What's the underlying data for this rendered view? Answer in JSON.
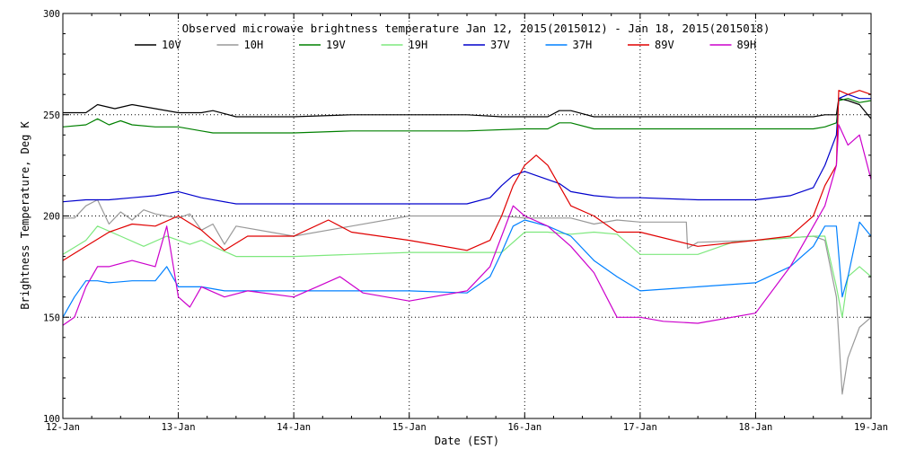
{
  "chart_data": {
    "type": "line",
    "title": "Observed microwave brightness temperature Jan 12, 2015(2015012) - Jan 18, 2015(2015018)",
    "xlabel": "Date (EST)",
    "ylabel": "Brightness Temperature, Deg K",
    "ylim": [
      100,
      300
    ],
    "xlim": [
      0,
      7
    ],
    "x_unit": "days since 12-Jan 00:00",
    "y_ticks": [
      100,
      150,
      200,
      250,
      300
    ],
    "x_tick_labels": [
      "12-Jan",
      "13-Jan",
      "14-Jan",
      "15-Jan",
      "16-Jan",
      "17-Jan",
      "18-Jan",
      "19-Jan"
    ],
    "grid": "dotted",
    "legend_position": "top",
    "series": [
      {
        "name": "10V",
        "color": "#000000",
        "x": [
          0,
          0.2,
          0.3,
          0.45,
          0.6,
          0.8,
          1.0,
          1.2,
          1.3,
          1.5,
          2.0,
          2.5,
          3.0,
          3.5,
          3.8,
          4.0,
          4.2,
          4.3,
          4.4,
          4.6,
          4.9,
          5.0,
          5.5,
          6.0,
          6.5,
          6.6,
          6.7,
          6.72,
          6.8,
          6.9,
          7.0
        ],
        "y": [
          251,
          251,
          255,
          253,
          255,
          253,
          251,
          251,
          252,
          249,
          249,
          250,
          250,
          250,
          249,
          249,
          249,
          252,
          252,
          249,
          249,
          249,
          249,
          249,
          249,
          250,
          250,
          258,
          257,
          255,
          248
        ]
      },
      {
        "name": "10H",
        "color": "#999999",
        "x": [
          0,
          0.1,
          0.2,
          0.3,
          0.4,
          0.5,
          0.6,
          0.7,
          0.8,
          0.9,
          1.0,
          1.1,
          1.2,
          1.3,
          1.4,
          1.5,
          2.0,
          2.5,
          3.0,
          3.5,
          3.8,
          4.0,
          4.2,
          4.4,
          4.6,
          4.8,
          5.0,
          5.4,
          5.41,
          5.5,
          6.0,
          6.5,
          6.6,
          6.7,
          6.75,
          6.8,
          6.9,
          7.0
        ],
        "y": [
          199,
          199,
          205,
          208,
          196,
          202,
          198,
          203,
          201,
          200,
          199,
          201,
          193,
          196,
          186,
          195,
          190,
          195,
          200,
          200,
          200,
          199,
          199,
          199,
          196,
          198,
          197,
          197,
          184,
          187,
          188,
          190,
          188,
          160,
          112,
          130,
          145,
          150
        ]
      },
      {
        "name": "19V",
        "color": "#008000",
        "x": [
          0,
          0.2,
          0.3,
          0.4,
          0.5,
          0.6,
          0.8,
          1.0,
          1.2,
          1.3,
          1.5,
          2.0,
          2.5,
          3.0,
          3.5,
          4.0,
          4.2,
          4.3,
          4.4,
          4.6,
          4.9,
          5.0,
          5.5,
          6.0,
          6.5,
          6.6,
          6.7,
          6.72,
          6.8,
          6.9,
          7.0
        ],
        "y": [
          244,
          245,
          248,
          245,
          247,
          245,
          244,
          244,
          242,
          241,
          241,
          241,
          242,
          242,
          242,
          243,
          243,
          246,
          246,
          243,
          243,
          243,
          243,
          243,
          243,
          244,
          246,
          257,
          258,
          256,
          257
        ]
      },
      {
        "name": "19H",
        "color": "#7ee87e",
        "x": [
          0,
          0.2,
          0.3,
          0.5,
          0.7,
          0.9,
          1.0,
          1.1,
          1.2,
          1.3,
          1.5,
          2.0,
          2.5,
          3.0,
          3.5,
          3.8,
          4.0,
          4.2,
          4.4,
          4.6,
          4.8,
          5.0,
          5.5,
          5.8,
          6.0,
          6.5,
          6.6,
          6.7,
          6.75,
          6.8,
          6.9,
          7.0
        ],
        "y": [
          181,
          188,
          195,
          190,
          185,
          190,
          188,
          186,
          188,
          185,
          180,
          180,
          181,
          182,
          182,
          182,
          192,
          192,
          191,
          192,
          191,
          181,
          181,
          187,
          188,
          190,
          190,
          165,
          150,
          170,
          175,
          170
        ]
      },
      {
        "name": "37V",
        "color": "#0000cc",
        "x": [
          0,
          0.2,
          0.4,
          0.6,
          0.8,
          1.0,
          1.2,
          1.5,
          2.0,
          2.5,
          3.0,
          3.5,
          3.7,
          3.8,
          3.9,
          4.0,
          4.1,
          4.2,
          4.3,
          4.4,
          4.6,
          4.8,
          5.0,
          5.5,
          6.0,
          6.3,
          6.5,
          6.6,
          6.7,
          6.72,
          6.8,
          6.9,
          7.0
        ],
        "y": [
          207,
          208,
          208,
          209,
          210,
          212,
          209,
          206,
          206,
          206,
          206,
          206,
          209,
          215,
          220,
          222,
          220,
          218,
          216,
          212,
          210,
          209,
          209,
          208,
          208,
          210,
          214,
          225,
          240,
          258,
          260,
          258,
          258
        ]
      },
      {
        "name": "37H",
        "color": "#0080ff",
        "x": [
          0,
          0.1,
          0.2,
          0.3,
          0.4,
          0.6,
          0.8,
          0.9,
          1.0,
          1.2,
          1.4,
          1.6,
          2.0,
          2.5,
          3.0,
          3.5,
          3.7,
          3.8,
          3.9,
          4.0,
          4.2,
          4.4,
          4.6,
          4.8,
          5.0,
          5.5,
          6.0,
          6.3,
          6.5,
          6.6,
          6.7,
          6.75,
          6.8,
          6.9,
          7.0
        ],
        "y": [
          150,
          160,
          168,
          168,
          167,
          168,
          168,
          175,
          165,
          165,
          163,
          163,
          163,
          163,
          163,
          162,
          170,
          182,
          195,
          198,
          195,
          190,
          178,
          170,
          163,
          165,
          167,
          175,
          185,
          195,
          195,
          160,
          170,
          197,
          190
        ]
      },
      {
        "name": "89V",
        "color": "#e00000",
        "x": [
          0,
          0.2,
          0.4,
          0.6,
          0.8,
          1.0,
          1.2,
          1.4,
          1.6,
          2.0,
          2.3,
          2.5,
          3.0,
          3.5,
          3.7,
          3.8,
          3.9,
          4.0,
          4.1,
          4.2,
          4.3,
          4.4,
          4.6,
          4.8,
          5.0,
          5.5,
          6.0,
          6.3,
          6.5,
          6.6,
          6.7,
          6.72,
          6.8,
          6.9,
          7.0
        ],
        "y": [
          178,
          185,
          192,
          196,
          195,
          200,
          193,
          183,
          190,
          190,
          198,
          192,
          188,
          183,
          188,
          200,
          215,
          225,
          230,
          225,
          215,
          205,
          200,
          192,
          192,
          185,
          188,
          190,
          200,
          215,
          225,
          262,
          260,
          262,
          260
        ]
      },
      {
        "name": "89H",
        "color": "#cc00cc",
        "x": [
          0,
          0.1,
          0.2,
          0.3,
          0.4,
          0.6,
          0.8,
          0.9,
          1.0,
          1.1,
          1.2,
          1.4,
          1.6,
          2.0,
          2.2,
          2.4,
          2.6,
          3.0,
          3.5,
          3.7,
          3.8,
          3.9,
          4.0,
          4.2,
          4.4,
          4.6,
          4.8,
          5.0,
          5.2,
          5.5,
          6.0,
          6.3,
          6.5,
          6.6,
          6.7,
          6.72,
          6.8,
          6.9,
          7.0
        ],
        "y": [
          146,
          150,
          165,
          175,
          175,
          178,
          175,
          195,
          160,
          155,
          165,
          160,
          163,
          160,
          165,
          170,
          162,
          158,
          163,
          175,
          190,
          205,
          200,
          195,
          185,
          172,
          150,
          150,
          148,
          147,
          152,
          175,
          195,
          205,
          225,
          245,
          235,
          240,
          218
        ]
      }
    ]
  }
}
